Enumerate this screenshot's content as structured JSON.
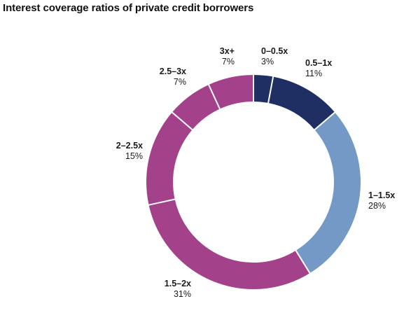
{
  "chart_data": {
    "type": "pie",
    "variant": "donut",
    "title": "Interest coverage ratios of private credit borrowers",
    "categories": [
      "0–0.5x",
      "0.5–1x",
      "1–1.5x",
      "1.5–2x",
      "2–2.5x",
      "2.5–3x",
      "3x+"
    ],
    "values": [
      3,
      11,
      28,
      31,
      15,
      7,
      7
    ],
    "value_labels": [
      "3%",
      "11%",
      "28%",
      "31%",
      "15%",
      "7%",
      "7%"
    ],
    "unit": "%",
    "colors": [
      "#1f2f63",
      "#1f2f63",
      "#7499c6",
      "#a3418b",
      "#a3418b",
      "#a3418b",
      "#a3418b"
    ],
    "segment_separator_color": "#ffffff",
    "start_angle_deg": 0,
    "direction": "clockwise",
    "legend": "none"
  }
}
